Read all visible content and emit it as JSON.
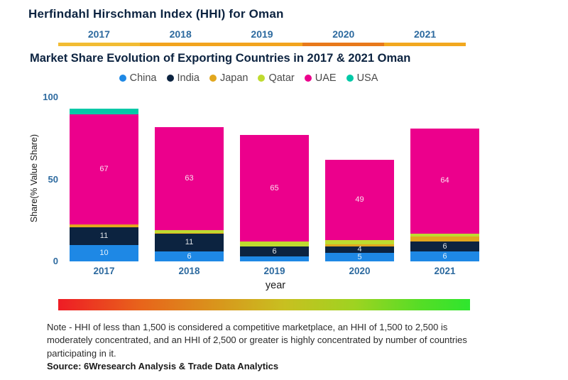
{
  "header": {
    "title": "Herfindahl Hirschman Index (HHI) for Oman",
    "strip_years": [
      "2017",
      "2018",
      "2019",
      "2020",
      "2021"
    ],
    "strip_colors": [
      "#f2bc33",
      "#f2a41e",
      "#f2a41e",
      "#e8791b",
      "#f2a81f"
    ]
  },
  "subtitle": "Market Share Evolution of Exporting Countries in 2017 & 2021 Oman",
  "legend": [
    {
      "name": "China",
      "color": "#1e88e5"
    },
    {
      "name": "India",
      "color": "#0c2340"
    },
    {
      "name": "Japan",
      "color": "#e2a71e"
    },
    {
      "name": "Qatar",
      "color": "#bfdb2f"
    },
    {
      "name": "UAE",
      "color": "#ec008c"
    },
    {
      "name": "USA",
      "color": "#00c9a7"
    }
  ],
  "chart_data": {
    "type": "bar",
    "stacked": true,
    "title": "Market Share Evolution of Exporting Countries in 2017 & 2021 Oman",
    "xlabel": "year",
    "ylabel": "Share(% Value Share)",
    "ylim": [
      0,
      100
    ],
    "yticks": [
      "0",
      "50",
      "100"
    ],
    "grid": false,
    "legend_position": "top",
    "categories": [
      "2017",
      "2018",
      "2019",
      "2020",
      "2021"
    ],
    "series": [
      {
        "name": "China",
        "color": "#1e88e5",
        "values": [
          10,
          6,
          3,
          5,
          6
        ],
        "labels": [
          "10",
          "6",
          "",
          "5",
          "6"
        ]
      },
      {
        "name": "India",
        "color": "#0c2340",
        "values": [
          11,
          11,
          6,
          4,
          6
        ],
        "labels": [
          "11",
          "11",
          "6",
          "4",
          "6"
        ]
      },
      {
        "name": "Japan",
        "color": "#e2a71e",
        "values": [
          1.5,
          0.5,
          0,
          1.5,
          3
        ],
        "labels": [
          "",
          "",
          "",
          "",
          ""
        ]
      },
      {
        "name": "Qatar",
        "color": "#bfdb2f",
        "values": [
          0,
          1.5,
          3,
          2.5,
          2
        ],
        "labels": [
          "",
          "",
          "",
          "",
          ""
        ]
      },
      {
        "name": "UAE",
        "color": "#ec008c",
        "values": [
          67,
          63,
          65,
          49,
          64
        ],
        "labels": [
          "67",
          "63",
          "65",
          "49",
          "64"
        ]
      },
      {
        "name": "USA",
        "color": "#00c9a7",
        "values": [
          3.5,
          0,
          0,
          0,
          0
        ],
        "labels": [
          "",
          "",
          "",
          "",
          ""
        ]
      }
    ]
  },
  "note_lines": [
    "Note - HHI of less than 1,500 is considered a competitive marketplace, an HHI of 1,500 to 2,500 is",
    "moderately concentrated, and an HHI of 2,500 or greater is highly concentrated by number of countries",
    "participating in it."
  ],
  "source": "Source: 6Wresearch Analysis & Trade Data Analytics"
}
